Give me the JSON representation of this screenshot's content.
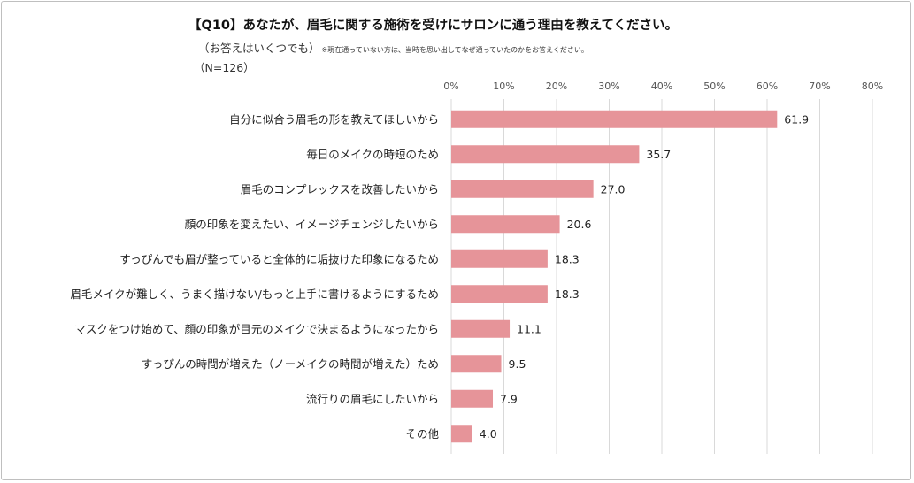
{
  "title": "【Q10】あなたが、眉毛に関する施術を受けにサロンに通う理由を教えてください。",
  "subtitle": "（お答えはいくつでも）",
  "note": "※現在通っていない方は、当時を思い出してなぜ通っていたのかをお答えください。",
  "sample": "（N=126）",
  "colors": {
    "bar": "#e69499",
    "grid": "#d9d9d9"
  },
  "chart_data": {
    "type": "bar",
    "orientation": "horizontal",
    "categories": [
      "自分に似合う眉毛の形を教えてほしいから",
      "毎日のメイクの時短のため",
      "眉毛のコンプレックスを改善したいから",
      "顔の印象を変えたい、イメージチェンジしたいから",
      "すっぴんでも眉が整っていると全体的に垢抜けた印象になるため",
      "眉毛メイクが難しく、うまく描けない/もっと上手に書けるようにするため",
      "マスクをつけ始めて、顔の印象が目元のメイクで決まるようになったから",
      "すっぴんの時間が増えた（ノーメイクの時間が増えた）ため",
      "流行りの眉毛にしたいから",
      "その他"
    ],
    "values": [
      61.9,
      35.7,
      27.0,
      20.6,
      18.3,
      18.3,
      11.1,
      9.5,
      7.9,
      4.0
    ],
    "value_labels": [
      "61.9",
      "35.7",
      "27.0",
      "20.6",
      "18.3",
      "18.3",
      "11.1",
      "9.5",
      "7.9",
      "4.0"
    ],
    "xlim": [
      0,
      80
    ],
    "ticks": [
      0,
      10,
      20,
      30,
      40,
      50,
      60,
      70,
      80
    ],
    "tick_labels": [
      "0%",
      "10%",
      "20%",
      "30%",
      "40%",
      "50%",
      "60%",
      "70%",
      "80%"
    ],
    "grid": true,
    "legend": "none"
  }
}
